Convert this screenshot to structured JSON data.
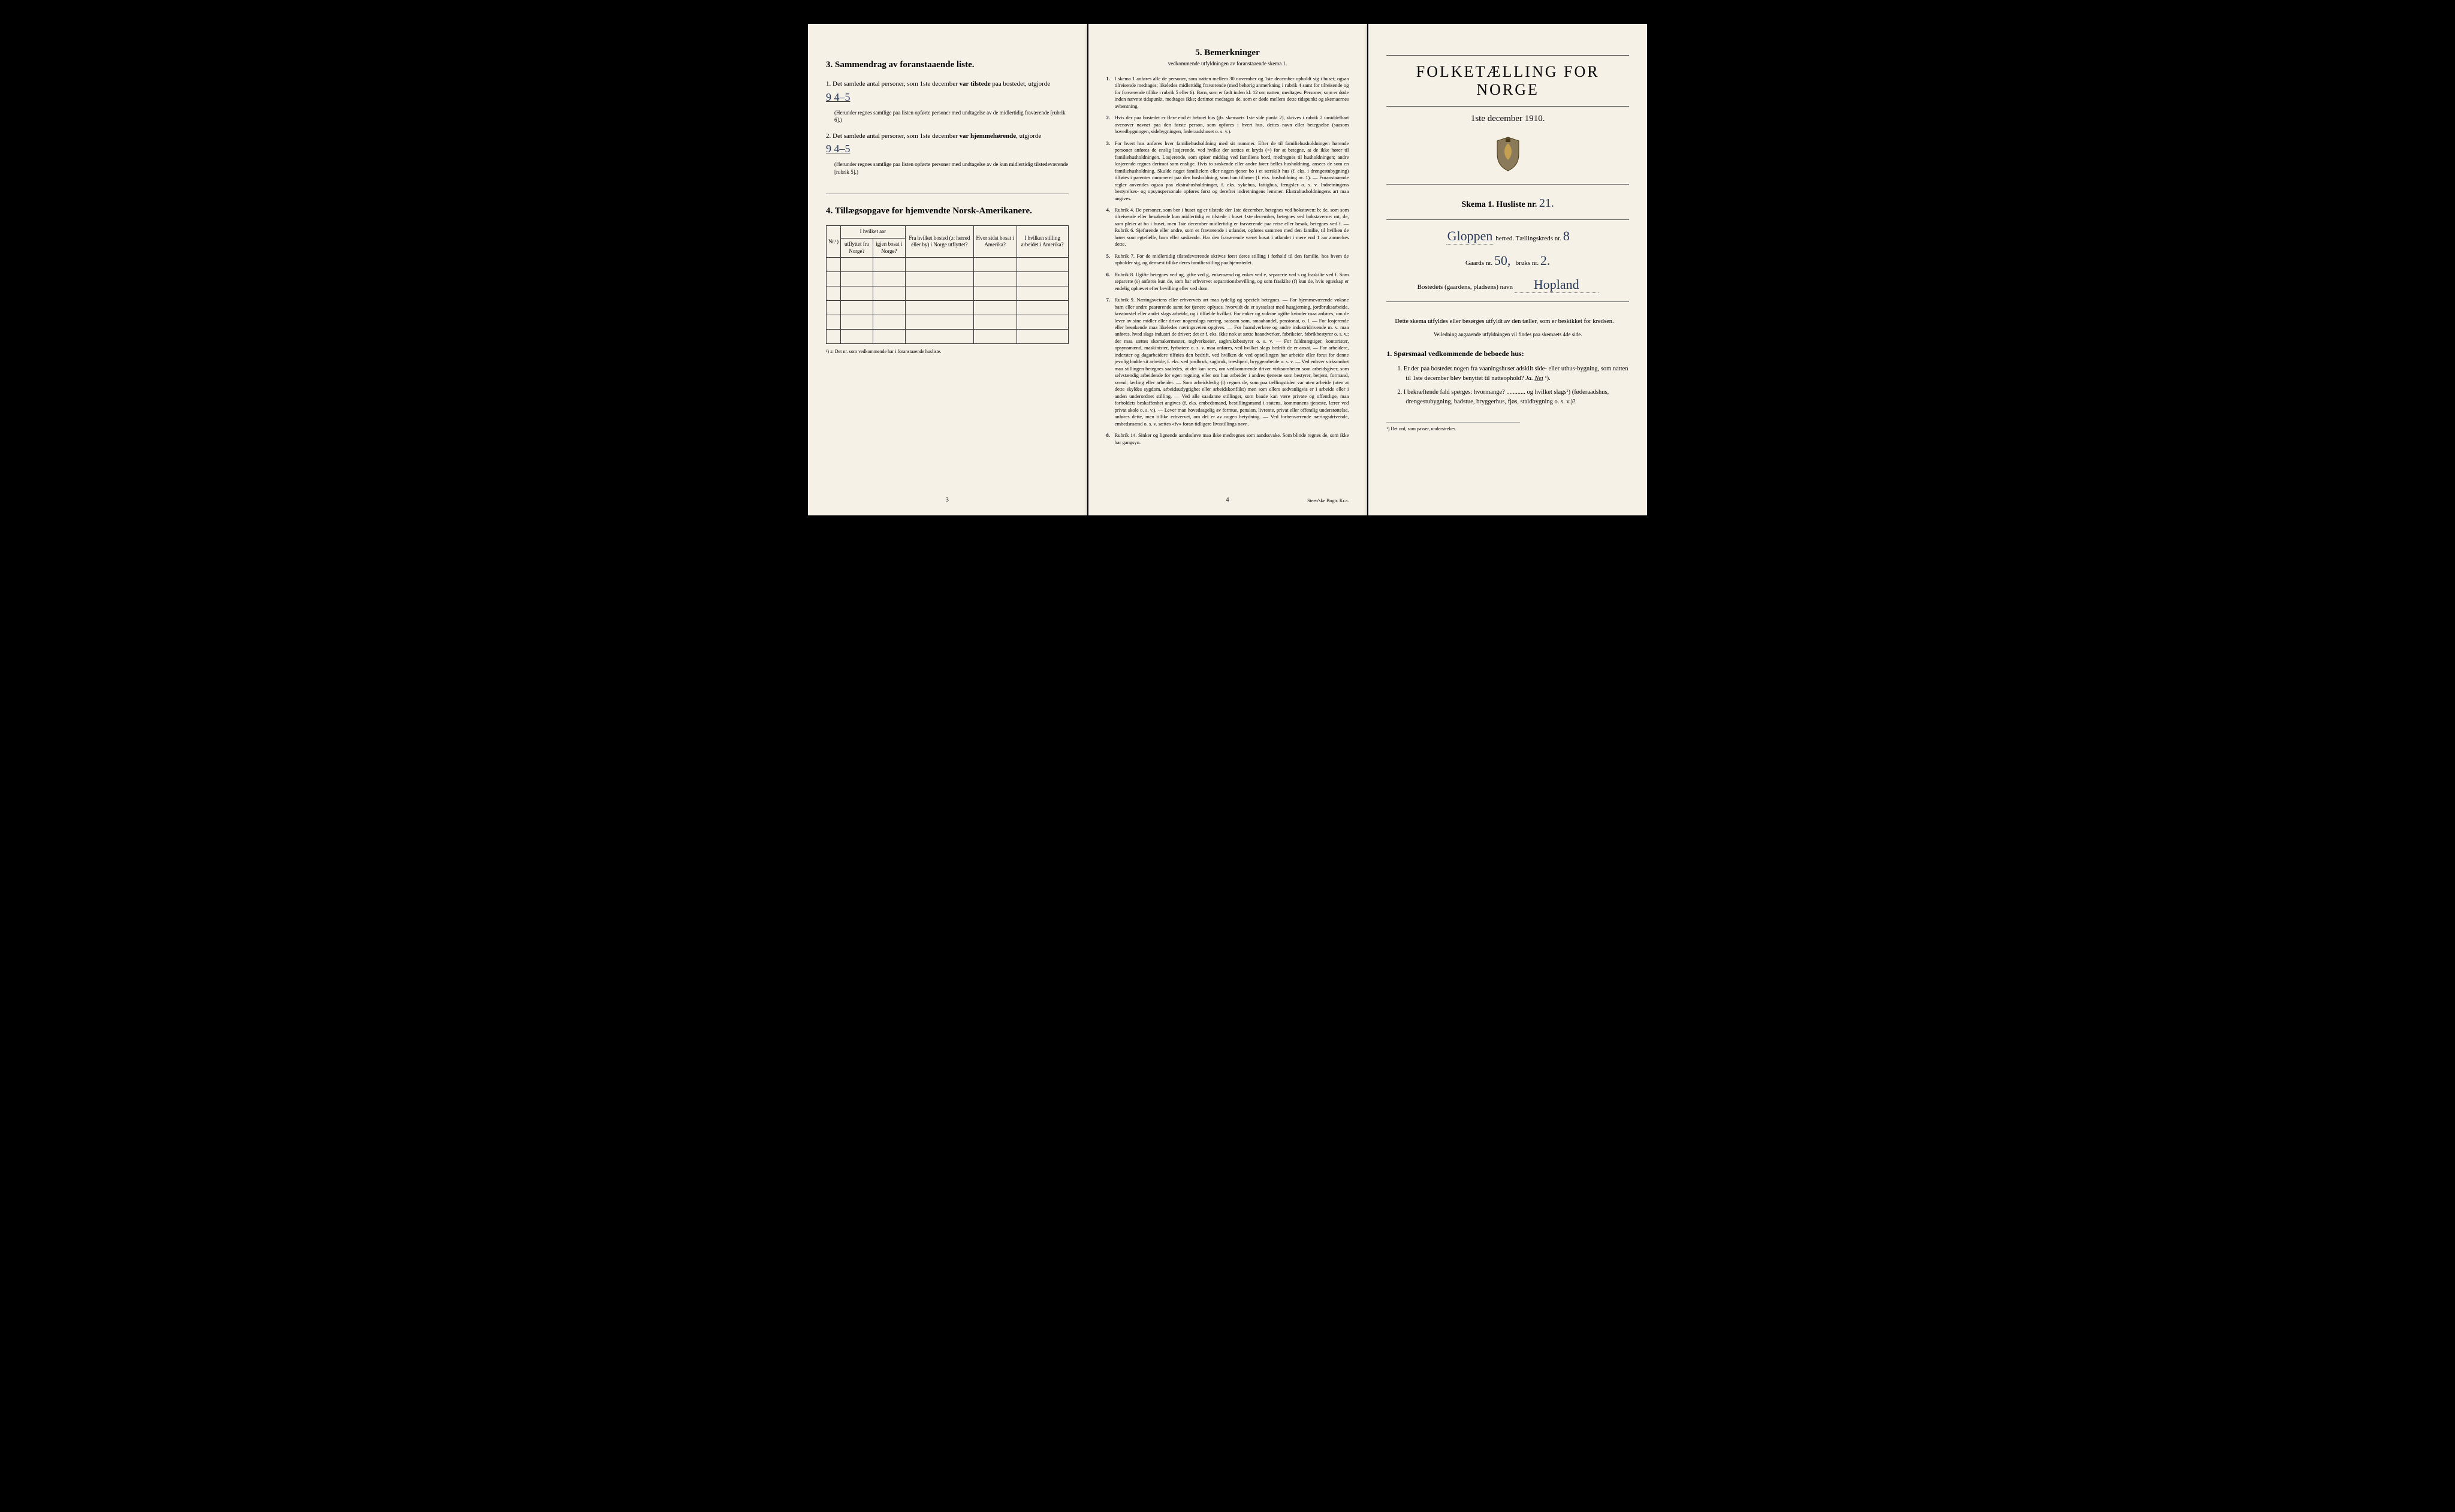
{
  "colors": {
    "page_bg": "#f5f1e6",
    "body_bg": "#000000",
    "ink": "#1a1a1a",
    "handwriting": "#2a3a5a",
    "rule": "#888888"
  },
  "left": {
    "section3_title": "3.  Sammendrag av foranstaaende liste.",
    "item1_prefix": "1.  Det samlede antal personer, som 1ste december ",
    "item1_bold": "var tilstede",
    "item1_suffix": " paa bostedet, utgjorde",
    "item1_value": "9  4–5",
    "item1_note": "(Herunder regnes samtlige paa listen opførte personer med undtagelse av de midlertidig fraværende [rubrik 6].)",
    "item2_prefix": "2.  Det samlede antal personer, som 1ste december ",
    "item2_bold": "var hjemmehørende",
    "item2_suffix": ", utgjorde",
    "item2_value": "9  4–5",
    "item2_note": "(Herunder regnes samtlige paa listen opførte personer med undtagelse av de kun midlertidig tilstedeværende [rubrik 5].)",
    "section4_title": "4.  Tillægsopgave for hjemvendte Norsk-Amerikanere.",
    "table": {
      "col_nr": "Nr.¹)",
      "col_year_group": "I hvilket aar",
      "col_year_out": "utflyttet fra Norge?",
      "col_year_back": "igjen bosat i Norge?",
      "col_from": "Fra hvilket bosted (ɔ: herred eller by) i Norge utflyttet?",
      "col_where": "Hvor sidst bosat i Amerika?",
      "col_work": "I hvilken stilling arbeidet i Amerika?",
      "empty_rows": 6
    },
    "table_footnote": "¹) ɔ: Det nr. som vedkommende har i foranstaaende husliste.",
    "page_num": "3"
  },
  "center": {
    "title": "5.  Bemerkninger",
    "subtitle": "vedkommende utfyldningen av foranstaaende skema 1.",
    "rules": [
      "I skema 1 anføres alle de personer, som natten mellem 30 november og 1ste december opholdt sig i huset; ogsaa tilreisende medtages; likeledes midlertidig fraværende (med behørig anmerkning i rubrik 4 samt for tilreisende og for fraværende tillike i rubrik 5 eller 6). Barn, som er født inden kl. 12 om natten, medtages. Personer, som er døde inden nævnte tidspunkt, medtages ikke; derimot medtages de, som er døde mellem dette tidspunkt og skemaernes avhentning.",
      "Hvis der paa bostedet er flere end ét beboet hus (jfr. skemaets 1ste side punkt 2), skrives i rubrik 2 umiddelbart ovenover navnet paa den første person, som opføres i hvert hus, dettes navn eller betegnelse (saasom hovedbygningen, sidebygningen, føderaadshuset o. s. v.).",
      "For hvert hus anføres hver familiehusholdning med sit nummer. Efter de til familiehusholdningen hørende personer anføres de enslig losjerende, ved hvilke der sættes et kryds (×) for at betegne, at de ikke hører til familiehusholdningen. Losjerende, som spiser middag ved familiens bord, medregnes til husholdningen; andre losjerende regnes derimot som enslige. Hvis to søskende eller andre fører fælles husholdning, ansees de som en familiehusholdning. Skulde noget familielem eller nogen tjener bo i et særskilt hus (f. eks. i drengestubygning) tilføies i parentes nummeret paa den husholdning, som han tilhører (f. eks. husholdning nr. 1). — Foranstaaende regler anvendes ogsaa paa ekstrahusholdninger, f. eks. sykehus, fattighus, fængsler o. s. v. Indretningens bestyrelses- og opsynspersonale opføres først og derefter indretningens lemmer. Ekstrahusholdningens art maa angives.",
      "Rubrik 4. De personer, som bor i huset og er tilstede der 1ste december, betegnes ved bokstaven: b; de, som som tilreisende eller besøkende kun midlertidig er tilstede i huset 1ste december, betegnes ved bokstaverne: mt; de, som pleier at bo i huset, men 1ste december midlertidig er fraværende paa reise eller besøk, betegnes ved f. — Rubrik 6. Sjøfarende eller andre, som er fraværende i utlandet, opføres sammen med den familie, til hvilken de hører som egtefælle, barn eller søskende. Har den fraværende været bosat i utlandet i mere end 1 aar anmerkes dette.",
      "Rubrik 7. For de midlertidig tilstedeværende skrives først deres stilling i forhold til den familie, hos hvem de opholder sig, og dernæst tillike deres familiestilling paa hjemstedet.",
      "Rubrik 8. Ugifte betegnes ved ug, gifte ved g, enkemænd og enker ved e, separerte ved s og fraskilte ved f. Som separerte (s) anføres kun de, som har erhvervet separationsbevilling, og som fraskilte (f) kun de, hvis egteskap er endelig ophævet efter bevilling eller ved dom.",
      "Rubrik 9. Næringsveiens eller erhvervets art maa tydelig og specielt betegnes. — For hjemmeværende voksne barn eller andre paarørende samt for tjenere oplyses, hvorvidt de er sysselsat med husgjerning, jordbruksarbeide, kreaturstel eller andet slags arbeide, og i tilfælde hvilket. For enker og voksne ugifte kvinder maa anføres, om de lever av sine midler eller driver nogenslags næring, saasom søm, smaahandel, pensionat, o. l. — For losjerende eller besøkende maa likeledes næringsveien opgives. — For haandverkere og andre industridrivende m. v. maa anføres, hvad slags industri de driver; det er f. eks. ikke nok at sætte haandverker, fabrikeier, fabrikbestyrer o. s. v.; der maa sættes skomakermester, teglverkseier, sagbruksbestyrer o. s. v. — For fuldmægtiger, kontorister, opsynsmænd, maskinister, fyrbøtere o. s. v. maa anføres, ved hvilket slags bedrift de er ansat. — For arbeidere, inderster og dagarbeidere tilføies den bedrift, ved hvilken de ved optællingen har arbeide eller forut for denne jevnlig hadde sit arbeide, f. eks. ved jordbruk, sagbruk, træsliperi, bryggearbeide o. s. v. — Ved enhver virksomhet maa stillingen betegnes saaledes, at det kan sees, om vedkommende driver virksomheten som arbeidsgiver, som selvstændig arbeidende for egen regning, eller om han arbeider i andres tjeneste som bestyrer, betjent, formand, svend, lærling eller arbeider. — Som arbeidsledig (l) regnes de, som paa tællingstiden var uten arbeide (uten at dette skyldes sygdom, arbeidsudygtighet eller arbeidskonflikt) men som ellers sedvanligvis er i arbeide eller i anden underordnet stilling. — Ved alle saadanne stillinger, som baade kan være private og offentlige, maa forholdets beskaffenhet angives (f. eks. embedsmand, bestillingsmand i statens, kommunens tjeneste, lærer ved privat skole o. s. v.). — Lever man hovedsagelig av formue, pension, livrente, privat eller offentlig understøttelse, anføres dette, men tillike erhvervet, om det er av nogen betydning. — Ved forhenværende næringsdrivende, embedsmænd o. s. v. sættes «fv» foran tidligere livsstillings navn.",
      "Rubrik 14. Sinker og lignende aandssløve maa ikke medregnes som aandssvake. Som blinde regnes de, som ikke har gangsyn."
    ],
    "page_num": "4",
    "printer": "Steen'ske Bogtr. Kr.a."
  },
  "right": {
    "main_title": "FOLKETÆLLING FOR NORGE",
    "date": "1ste december 1910.",
    "skema_label": "Skema 1.  Husliste nr.",
    "husliste_nr": "21.",
    "herred_value": "Gloppen",
    "herred_label": "herred.   Tællingskreds nr.",
    "kreds_nr": "8",
    "gaards_label": "Gaards nr.",
    "gaards_nr": "50,",
    "bruks_label": "bruks nr.",
    "bruks_nr": "2.",
    "bosted_label": "Bostedets (gaardens, pladsens) navn",
    "bosted_value": "Hopland",
    "instruction": "Dette skema utfyldes eller besørges utfyldt av den tæller, som er beskikket for kredsen.",
    "instruction_small": "Veiledning angaaende utfyldningen vil findes paa skemaets 4de side.",
    "q_heading": "1. Spørsmaal vedkommende de beboede hus:",
    "q1": "1.  Er der paa bostedet nogen fra vaaningshuset adskilt side- eller uthus-bygning, som natten til 1ste december blev benyttet til natteophold?   Ja.   Nei ¹).",
    "q2": "2.  I bekræftende fald spørges: hvormange? ............ og hvilket slags¹) (føderaadshus, drengestubygning, badstue, bryggerhus, fjøs, staldbygning o. s. v.)?",
    "footnote": "¹) Det ord, som passer, understrekes."
  }
}
